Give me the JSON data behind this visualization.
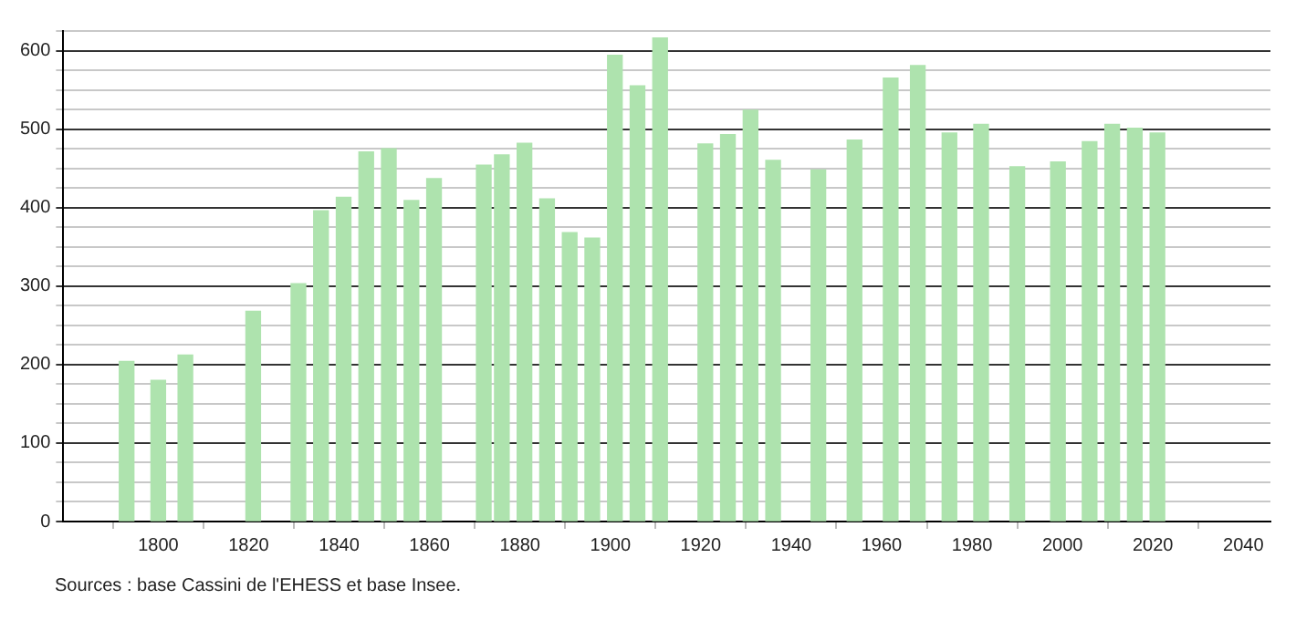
{
  "chart_data": {
    "type": "bar",
    "x": [
      1793,
      1800,
      1806,
      1821,
      1831,
      1836,
      1841,
      1846,
      1851,
      1856,
      1861,
      1872,
      1876,
      1881,
      1886,
      1891,
      1896,
      1901,
      1906,
      1911,
      1921,
      1926,
      1931,
      1936,
      1946,
      1954,
      1962,
      1968,
      1975,
      1982,
      1990,
      1999,
      2006,
      2011,
      2016,
      2021
    ],
    "values": [
      204,
      180,
      212,
      268,
      303,
      396,
      413,
      471,
      475,
      409,
      437,
      454,
      467,
      482,
      411,
      368,
      361,
      594,
      555,
      616,
      481,
      493,
      524,
      460,
      448,
      486,
      565,
      581,
      495,
      506,
      452,
      458,
      484,
      506,
      501,
      495
    ],
    "color": "#aee3ae",
    "xlim": [
      1779,
      2046
    ],
    "xticks": [
      1800,
      1820,
      1840,
      1860,
      1880,
      1900,
      1920,
      1940,
      1960,
      1980,
      2000,
      2020,
      2040
    ],
    "ylim": [
      0,
      625
    ],
    "yticks": [
      0,
      {
        "value": 25,
        "label": null
      },
      {
        "value": 50,
        "label": null
      },
      {
        "value": 75,
        "label": null
      },
      100,
      {
        "value": 125,
        "label": null
      },
      {
        "value": 150,
        "label": null
      },
      {
        "value": 175,
        "label": null
      },
      200,
      {
        "value": 225,
        "label": null
      },
      {
        "value": 250,
        "label": null
      },
      {
        "value": 275,
        "label": null
      },
      300,
      {
        "value": 325,
        "label": null
      },
      {
        "value": 350,
        "label": null
      },
      {
        "value": 375,
        "label": null
      },
      400,
      {
        "value": 425,
        "label": null
      },
      {
        "value": 450,
        "label": null
      },
      {
        "value": 475,
        "label": null
      },
      500,
      {
        "value": 525,
        "label": null
      },
      {
        "value": 550,
        "label": null
      },
      {
        "value": 575,
        "label": null
      },
      600,
      {
        "value": 625,
        "label": null
      }
    ],
    "grid": "y",
    "annotations": [
      "Sources : base Cassini de l'EHESS et base Insee."
    ]
  }
}
